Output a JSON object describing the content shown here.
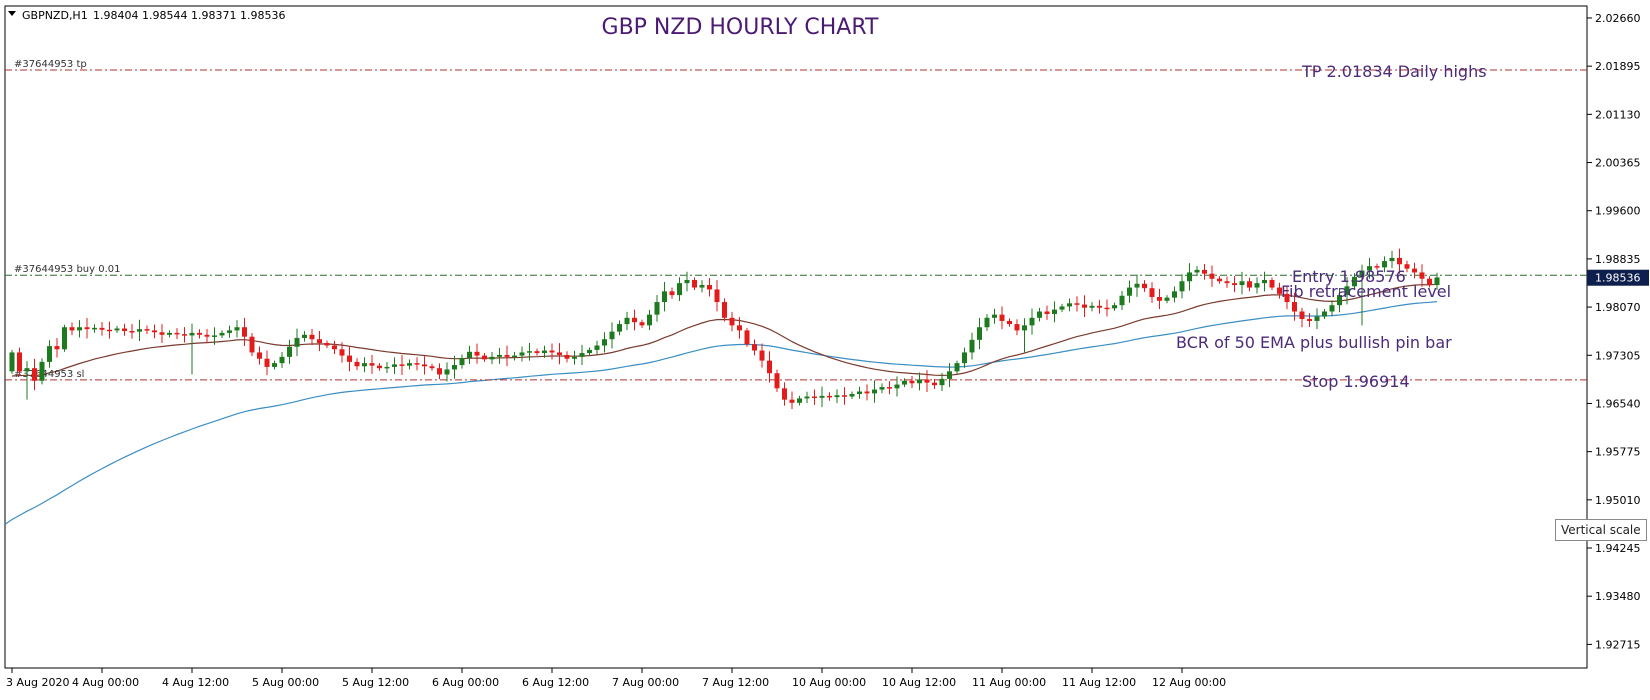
{
  "header": {
    "symbol": "GBPNZD,H1",
    "ohlc": "1.98404 1.98544 1.98371 1.98536"
  },
  "colors": {
    "bull": "#1e7a1e",
    "bear": "#e31b1b",
    "ema50": "#7a3b2e",
    "ma200": "#3b8ec4",
    "order_lines": "#b03030",
    "entry_line": "#2e6b2e",
    "price_tag_bg": "#0e1f4d"
  },
  "chart_data": {
    "type": "candlestick",
    "title": "GBP NZD HOURLY CHART",
    "xlabel": "",
    "ylabel": "",
    "ylim": [
      1.9234,
      2.0285
    ],
    "yticks": [
      "2.02660",
      "2.01895",
      "2.01130",
      "2.00365",
      "1.99600",
      "1.98835",
      "1.98070",
      "1.97305",
      "1.96540",
      "1.95775",
      "1.95010",
      "1.94245",
      "1.93480",
      "1.92715"
    ],
    "xticks": [
      "3 Aug 2020",
      "4 Aug 00:00",
      "4 Aug 12:00",
      "5 Aug 00:00",
      "5 Aug 12:00",
      "6 Aug 00:00",
      "6 Aug 12:00",
      "7 Aug 00:00",
      "7 Aug 12:00",
      "10 Aug 00:00",
      "10 Aug 12:00",
      "11 Aug 00:00",
      "11 Aug 12:00",
      "12 Aug 00:00"
    ],
    "current_price": "1.98536",
    "orders": [
      {
        "label": "#37644953 tp",
        "price": 2.01834
      },
      {
        "label": "#37644953 buy 0.01",
        "price": 1.98576
      },
      {
        "label": "#37644953 sl",
        "price": 1.96914
      }
    ],
    "annotations": [
      {
        "text": "TP 2.01834 Daily highs",
        "price": 2.01834
      },
      {
        "text": "Entry 1.98576",
        "price": 1.98576
      },
      {
        "text": "Fib retracement level",
        "price": 1.9834
      },
      {
        "text": "BCR of 50 EMA plus bullish pin bar",
        "price": 1.9753
      },
      {
        "text": "Stop 1.96914",
        "price": 1.96914
      }
    ],
    "closes": [
      1.9735,
      1.9705,
      1.971,
      1.969,
      1.972,
      1.9745,
      1.974,
      1.9775,
      1.977,
      1.9775,
      1.9772,
      1.9774,
      1.9771,
      1.977,
      1.9773,
      1.9769,
      1.9768,
      1.9772,
      1.977,
      1.9767,
      1.9763,
      1.9766,
      1.9764,
      1.9762,
      1.9766,
      1.9763,
      1.976,
      1.9762,
      1.9766,
      1.977,
      1.9775,
      1.976,
      1.9735,
      1.9725,
      1.9712,
      1.9718,
      1.9728,
      1.9744,
      1.9758,
      1.9763,
      1.9756,
      1.975,
      1.9746,
      1.974,
      1.973,
      1.972,
      1.9713,
      1.9718,
      1.9714,
      1.971,
      1.9712,
      1.9716,
      1.9714,
      1.9718,
      1.9716,
      1.9713,
      1.971,
      1.97,
      1.9708,
      1.9715,
      1.9726,
      1.9736,
      1.973,
      1.9724,
      1.9728,
      1.9731,
      1.9728,
      1.973,
      1.9735,
      1.9737,
      1.9734,
      1.9738,
      1.9735,
      1.9731,
      1.9725,
      1.9728,
      1.9734,
      1.9739,
      1.9746,
      1.9756,
      1.9768,
      1.978,
      1.979,
      1.9783,
      1.9778,
      1.9795,
      1.9815,
      1.9832,
      1.9826,
      1.9845,
      1.985,
      1.9838,
      1.9842,
      1.9835,
      1.9815,
      1.979,
      1.9778,
      1.977,
      1.9748,
      1.9738,
      1.9722,
      1.9702,
      1.9678,
      1.966,
      1.9655,
      1.9662,
      1.9665,
      1.9663,
      1.9666,
      1.9664,
      1.9667,
      1.9665,
      1.9669,
      1.9673,
      1.967,
      1.9676,
      1.968,
      1.9678,
      1.9684,
      1.969,
      1.9686,
      1.9692,
      1.9687,
      1.9683,
      1.9693,
      1.9705,
      1.9718,
      1.9735,
      1.9755,
      1.9775,
      1.979,
      1.9795,
      1.9785,
      1.978,
      1.977,
      1.9778,
      1.979,
      1.98,
      1.9796,
      1.9803,
      1.9808,
      1.9813,
      1.9811,
      1.9806,
      1.9809,
      1.9806,
      1.9805,
      1.981,
      1.9825,
      1.9838,
      1.9844,
      1.9837,
      1.9823,
      1.9817,
      1.9822,
      1.9832,
      1.9848,
      1.9862,
      1.9866,
      1.986,
      1.9852,
      1.9848,
      1.9845,
      1.9842,
      1.9848,
      1.9838,
      1.9845,
      1.985,
      1.9838,
      1.9828,
      1.9815,
      1.98,
      1.9788,
      1.9785,
      1.9792,
      1.98,
      1.981,
      1.9826,
      1.984,
      1.9855,
      1.9865,
      1.9872,
      1.987,
      1.988,
      1.9885,
      1.9875,
      1.9868,
      1.9862,
      1.9852,
      1.9842,
      1.9854
    ]
  }
}
